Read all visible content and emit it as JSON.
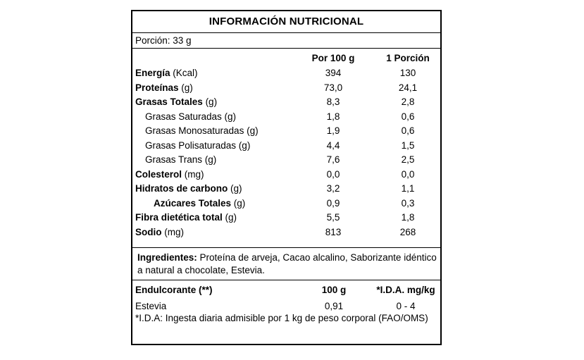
{
  "title": "INFORMACIÓN NUTRICIONAL",
  "portion": "Porción: 33 g",
  "columns": {
    "per100": "Por 100 g",
    "perPortion": "1 Porción"
  },
  "nutrients": [
    {
      "name": "Energía",
      "unit": " (Kcal)",
      "per100": "394",
      "perPortion": "130",
      "indent": 0
    },
    {
      "name": "Proteínas",
      "unit": " (g)",
      "per100": "73,0",
      "perPortion": "24,1",
      "indent": 0
    },
    {
      "name": "Grasas Totales",
      "unit": " (g)",
      "per100": "8,3",
      "perPortion": "2,8",
      "indent": 0
    },
    {
      "name": "",
      "unit": "Grasas Saturadas (g)",
      "per100": "1,8",
      "perPortion": "0,6",
      "indent": 1
    },
    {
      "name": "",
      "unit": "Grasas Monosaturadas (g)",
      "per100": "1,9",
      "perPortion": "0,6",
      "indent": 1
    },
    {
      "name": "",
      "unit": "Grasas Polisaturadas (g)",
      "per100": "4,4",
      "perPortion": "1,5",
      "indent": 1
    },
    {
      "name": "",
      "unit": "Grasas Trans (g)",
      "per100": "7,6",
      "perPortion": "2,5",
      "indent": 1
    },
    {
      "name": "Colesterol",
      "unit": " (mg)",
      "per100": "0,0",
      "perPortion": "0,0",
      "indent": 0
    },
    {
      "name": "Hidratos de carbono",
      "unit": " (g)",
      "per100": "3,2",
      "perPortion": "1,1",
      "indent": 0
    },
    {
      "name": "Azúcares Totales",
      "unit": " (g)",
      "per100": "0,9",
      "perPortion": "0,3",
      "indent": 2
    },
    {
      "name": "Fibra dietética total",
      "unit": " (g)",
      "per100": "5,5",
      "perPortion": "1,8",
      "indent": 0
    },
    {
      "name": "Sodio",
      "unit": " (mg)",
      "per100": "813",
      "perPortion": "268",
      "indent": 0
    }
  ],
  "ingredients": {
    "label": "Ingredientes:",
    "text": " Proteína de arveja, Cacao alcalino, Saborizante idéntico a natural a chocolate, Estevia."
  },
  "sweetener": {
    "header": {
      "name": "Endulcorante (**)",
      "col1": "100 g",
      "col2": "*I.D.A. mg/kg"
    },
    "row": {
      "name": "Estevia",
      "col1": "0,91",
      "col2": "0 - 4"
    },
    "note": "*I.D.A: Ingesta diaria admisible por 1 kg de peso corporal (FAO/OMS)"
  }
}
